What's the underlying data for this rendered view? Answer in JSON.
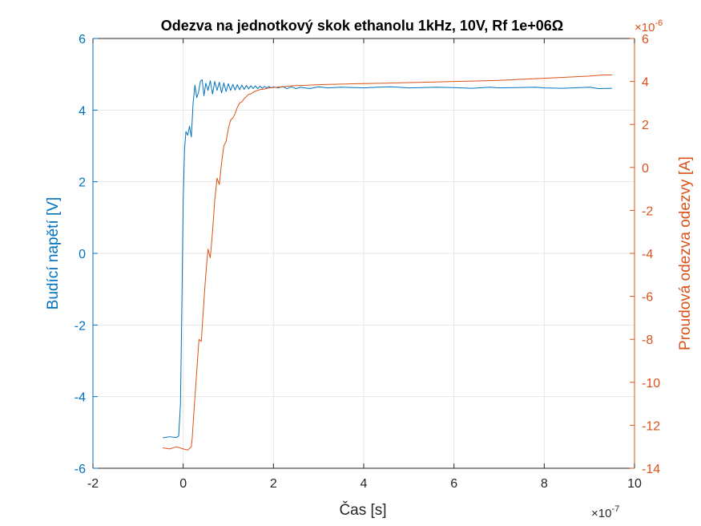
{
  "chart_data": {
    "type": "line",
    "title": "Odezva na jednotkový skok ethanolu 1kHz, 10V, Rf 1e+06Ω",
    "xlabel": "Čas [s]",
    "x_exponent": {
      "base": "×10",
      "power": "-7"
    },
    "xlim": [
      -2e-07,
      1e-06
    ],
    "x_ticks": [
      -2e-07,
      0,
      2e-07,
      4e-07,
      6e-07,
      8e-07,
      1e-06
    ],
    "x_tick_labels": [
      "-2",
      "0",
      "2",
      "4",
      "6",
      "8",
      "10"
    ],
    "ylabel_left": "Budící napětí [V]",
    "ylim_left": [
      -6,
      6
    ],
    "y_ticks_left": [
      -6,
      -4,
      -2,
      0,
      2,
      4,
      6
    ],
    "y_tick_labels_left": [
      "-6",
      "-4",
      "-2",
      "0",
      "2",
      "4",
      "6"
    ],
    "ylabel_right": "Proudová odezva odezvy [A]",
    "right_exponent": {
      "base": "×10",
      "power": "-6"
    },
    "ylim_right": [
      -1.4e-05,
      6e-06
    ],
    "y_ticks_right": [
      -1.4e-05,
      -1.2e-05,
      -1e-05,
      -8e-06,
      -6e-06,
      -4e-06,
      -2e-06,
      0,
      2e-06,
      4e-06,
      6e-06
    ],
    "y_tick_labels_right": [
      "-14",
      "-12",
      "-10",
      "-8",
      "-6",
      "-4",
      "-2",
      "0",
      "2",
      "4",
      "6"
    ],
    "grid": true,
    "colors": {
      "left": "#0072BD",
      "right": "#D95319"
    },
    "series": [
      {
        "axis": "left",
        "x": [
          -4.5e-08,
          -3e-08,
          -1.5e-08,
          -1e-08,
          -6e-09,
          -3e-09,
          0,
          3e-09,
          6e-09,
          1e-08,
          1.4e-08,
          1.8e-08,
          2.2e-08,
          2.6e-08,
          3e-08,
          3.4e-08,
          3.8e-08,
          4.2e-08,
          4.6e-08,
          5e-08,
          5.5e-08,
          6e-08,
          6.5e-08,
          7e-08,
          7.5e-08,
          8e-08,
          8.5e-08,
          9e-08,
          9.5e-08,
          1e-07,
          1.05e-07,
          1.1e-07,
          1.15e-07,
          1.2e-07,
          1.25e-07,
          1.3e-07,
          1.35e-07,
          1.4e-07,
          1.45e-07,
          1.5e-07,
          1.55e-07,
          1.6e-07,
          1.65e-07,
          1.7e-07,
          1.75e-07,
          1.8e-07,
          1.85e-07,
          1.9e-07,
          1.95e-07,
          2e-07,
          2.1e-07,
          2.2e-07,
          2.3e-07,
          2.4e-07,
          2.5e-07,
          2.6e-07,
          2.8e-07,
          3e-07,
          3.2e-07,
          3.5e-07,
          3.8e-07,
          4e-07,
          4.3e-07,
          4.6e-07,
          5e-07,
          5.3e-07,
          5.6e-07,
          6e-07,
          6.4e-07,
          6.8e-07,
          7e-07,
          7.4e-07,
          7.8e-07,
          8e-07,
          8.4e-07,
          8.8e-07,
          9e-07,
          9.2e-07,
          9.5e-07
        ],
        "y": [
          -5.15,
          -5.12,
          -5.14,
          -5.1,
          -4.2,
          -1.5,
          1.5,
          2.9,
          3.4,
          3.3,
          3.55,
          3.25,
          4.2,
          4.7,
          4.35,
          4.5,
          4.8,
          4.85,
          4.4,
          4.75,
          4.55,
          4.82,
          4.45,
          4.8,
          4.55,
          4.78,
          4.48,
          4.76,
          4.52,
          4.74,
          4.55,
          4.72,
          4.56,
          4.71,
          4.57,
          4.7,
          4.58,
          4.69,
          4.59,
          4.68,
          4.6,
          4.68,
          4.6,
          4.67,
          4.61,
          4.66,
          4.62,
          4.66,
          4.62,
          4.65,
          4.62,
          4.66,
          4.6,
          4.65,
          4.6,
          4.64,
          4.6,
          4.65,
          4.62,
          4.64,
          4.63,
          4.62,
          4.64,
          4.65,
          4.62,
          4.63,
          4.64,
          4.63,
          4.61,
          4.64,
          4.62,
          4.63,
          4.64,
          4.62,
          4.61,
          4.63,
          4.64,
          4.6,
          4.61
        ]
      },
      {
        "axis": "right",
        "x": [
          -4.5e-08,
          -3e-08,
          -1.5e-08,
          0,
          1e-08,
          1.8e-08,
          2e-08,
          2.5e-08,
          3e-08,
          3.5e-08,
          4e-08,
          4.5e-08,
          5e-08,
          5.5e-08,
          6e-08,
          6.5e-08,
          7e-08,
          7.5e-08,
          8e-08,
          8.5e-08,
          9e-08,
          9.5e-08,
          1e-07,
          1.05e-07,
          1.1e-07,
          1.15e-07,
          1.2e-07,
          1.25e-07,
          1.3e-07,
          1.35e-07,
          1.4e-07,
          1.45e-07,
          1.5e-07,
          1.55e-07,
          1.6e-07,
          1.7e-07,
          1.8e-07,
          1.9e-07,
          2e-07,
          2.2e-07,
          2.4e-07,
          2.7e-07,
          3e-07,
          3.5e-07,
          4e-07,
          4.5e-07,
          5e-07,
          5.5e-07,
          6e-07,
          6.5e-07,
          7e-07,
          7.5e-07,
          8e-07,
          8.5e-07,
          9e-07,
          9.3e-07,
          9.5e-07
        ],
        "y": [
          -1.305e-05,
          -1.31e-05,
          -1.3e-05,
          -1.31e-05,
          -1.315e-05,
          -1.3e-05,
          -1.26e-05,
          -1.1e-05,
          -9.5e-06,
          -8e-06,
          -8.1e-06,
          -6.5e-06,
          -5e-06,
          -3.8e-06,
          -4.2e-06,
          -3e-06,
          -1.5e-06,
          -5e-07,
          -8e-07,
          2e-07,
          1e-06,
          1.2e-06,
          1.8e-06,
          2.2e-06,
          2.3e-06,
          2.5e-06,
          2.8e-06,
          3e-06,
          3.05e-06,
          3.2e-06,
          3.3e-06,
          3.4e-06,
          3.42e-06,
          3.5e-06,
          3.55e-06,
          3.62e-06,
          3.65e-06,
          3.7e-06,
          3.72e-06,
          3.75e-06,
          3.8e-06,
          3.82e-06,
          3.85e-06,
          3.88e-06,
          3.9e-06,
          3.92e-06,
          3.95e-06,
          3.97e-06,
          4e-06,
          4.02e-06,
          4.05e-06,
          4.1e-06,
          4.15e-06,
          4.2e-06,
          4.25e-06,
          4.3e-06,
          4.3e-06
        ]
      }
    ]
  }
}
